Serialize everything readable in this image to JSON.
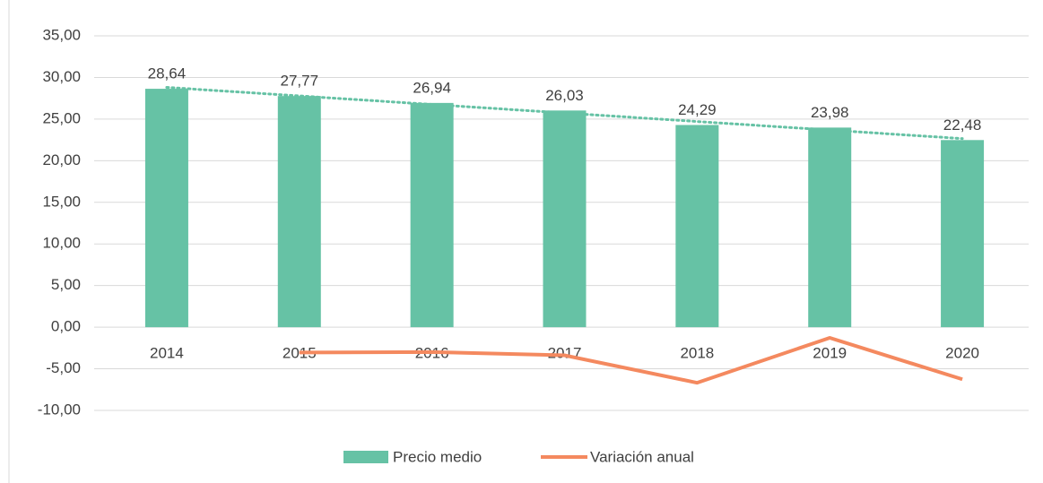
{
  "chart_data": {
    "type": "bar_line",
    "categories": [
      "2014",
      "2015",
      "2016",
      "2017",
      "2018",
      "2019",
      "2020"
    ],
    "series": [
      {
        "name": "Precio medio",
        "type": "bar",
        "color": "#66c2a5",
        "values": [
          28.64,
          27.77,
          26.94,
          26.03,
          24.29,
          23.98,
          22.48
        ],
        "value_labels": [
          "28,64",
          "27,77",
          "26,94",
          "26,03",
          "24,29",
          "23,98",
          "22,48"
        ],
        "trendline": true
      },
      {
        "name": "Variación anual",
        "type": "line",
        "color": "#f4895f",
        "values": [
          null,
          -3.04,
          -2.99,
          -3.38,
          -6.68,
          -1.28,
          -6.26
        ]
      }
    ],
    "ylim": [
      -10,
      35
    ],
    "yticks": [
      {
        "value": -10,
        "label": "-10,00"
      },
      {
        "value": -5,
        "label": "-5,00"
      },
      {
        "value": 0,
        "label": "0,00"
      },
      {
        "value": 5,
        "label": "5,00"
      },
      {
        "value": 10,
        "label": "10,00"
      },
      {
        "value": 15,
        "label": "15,00"
      },
      {
        "value": 20,
        "label": "20,00"
      },
      {
        "value": 25,
        "label": "25,00"
      },
      {
        "value": 30,
        "label": "30,00"
      },
      {
        "value": 35,
        "label": "35,00"
      }
    ],
    "grid": true,
    "legend": "bottom"
  }
}
